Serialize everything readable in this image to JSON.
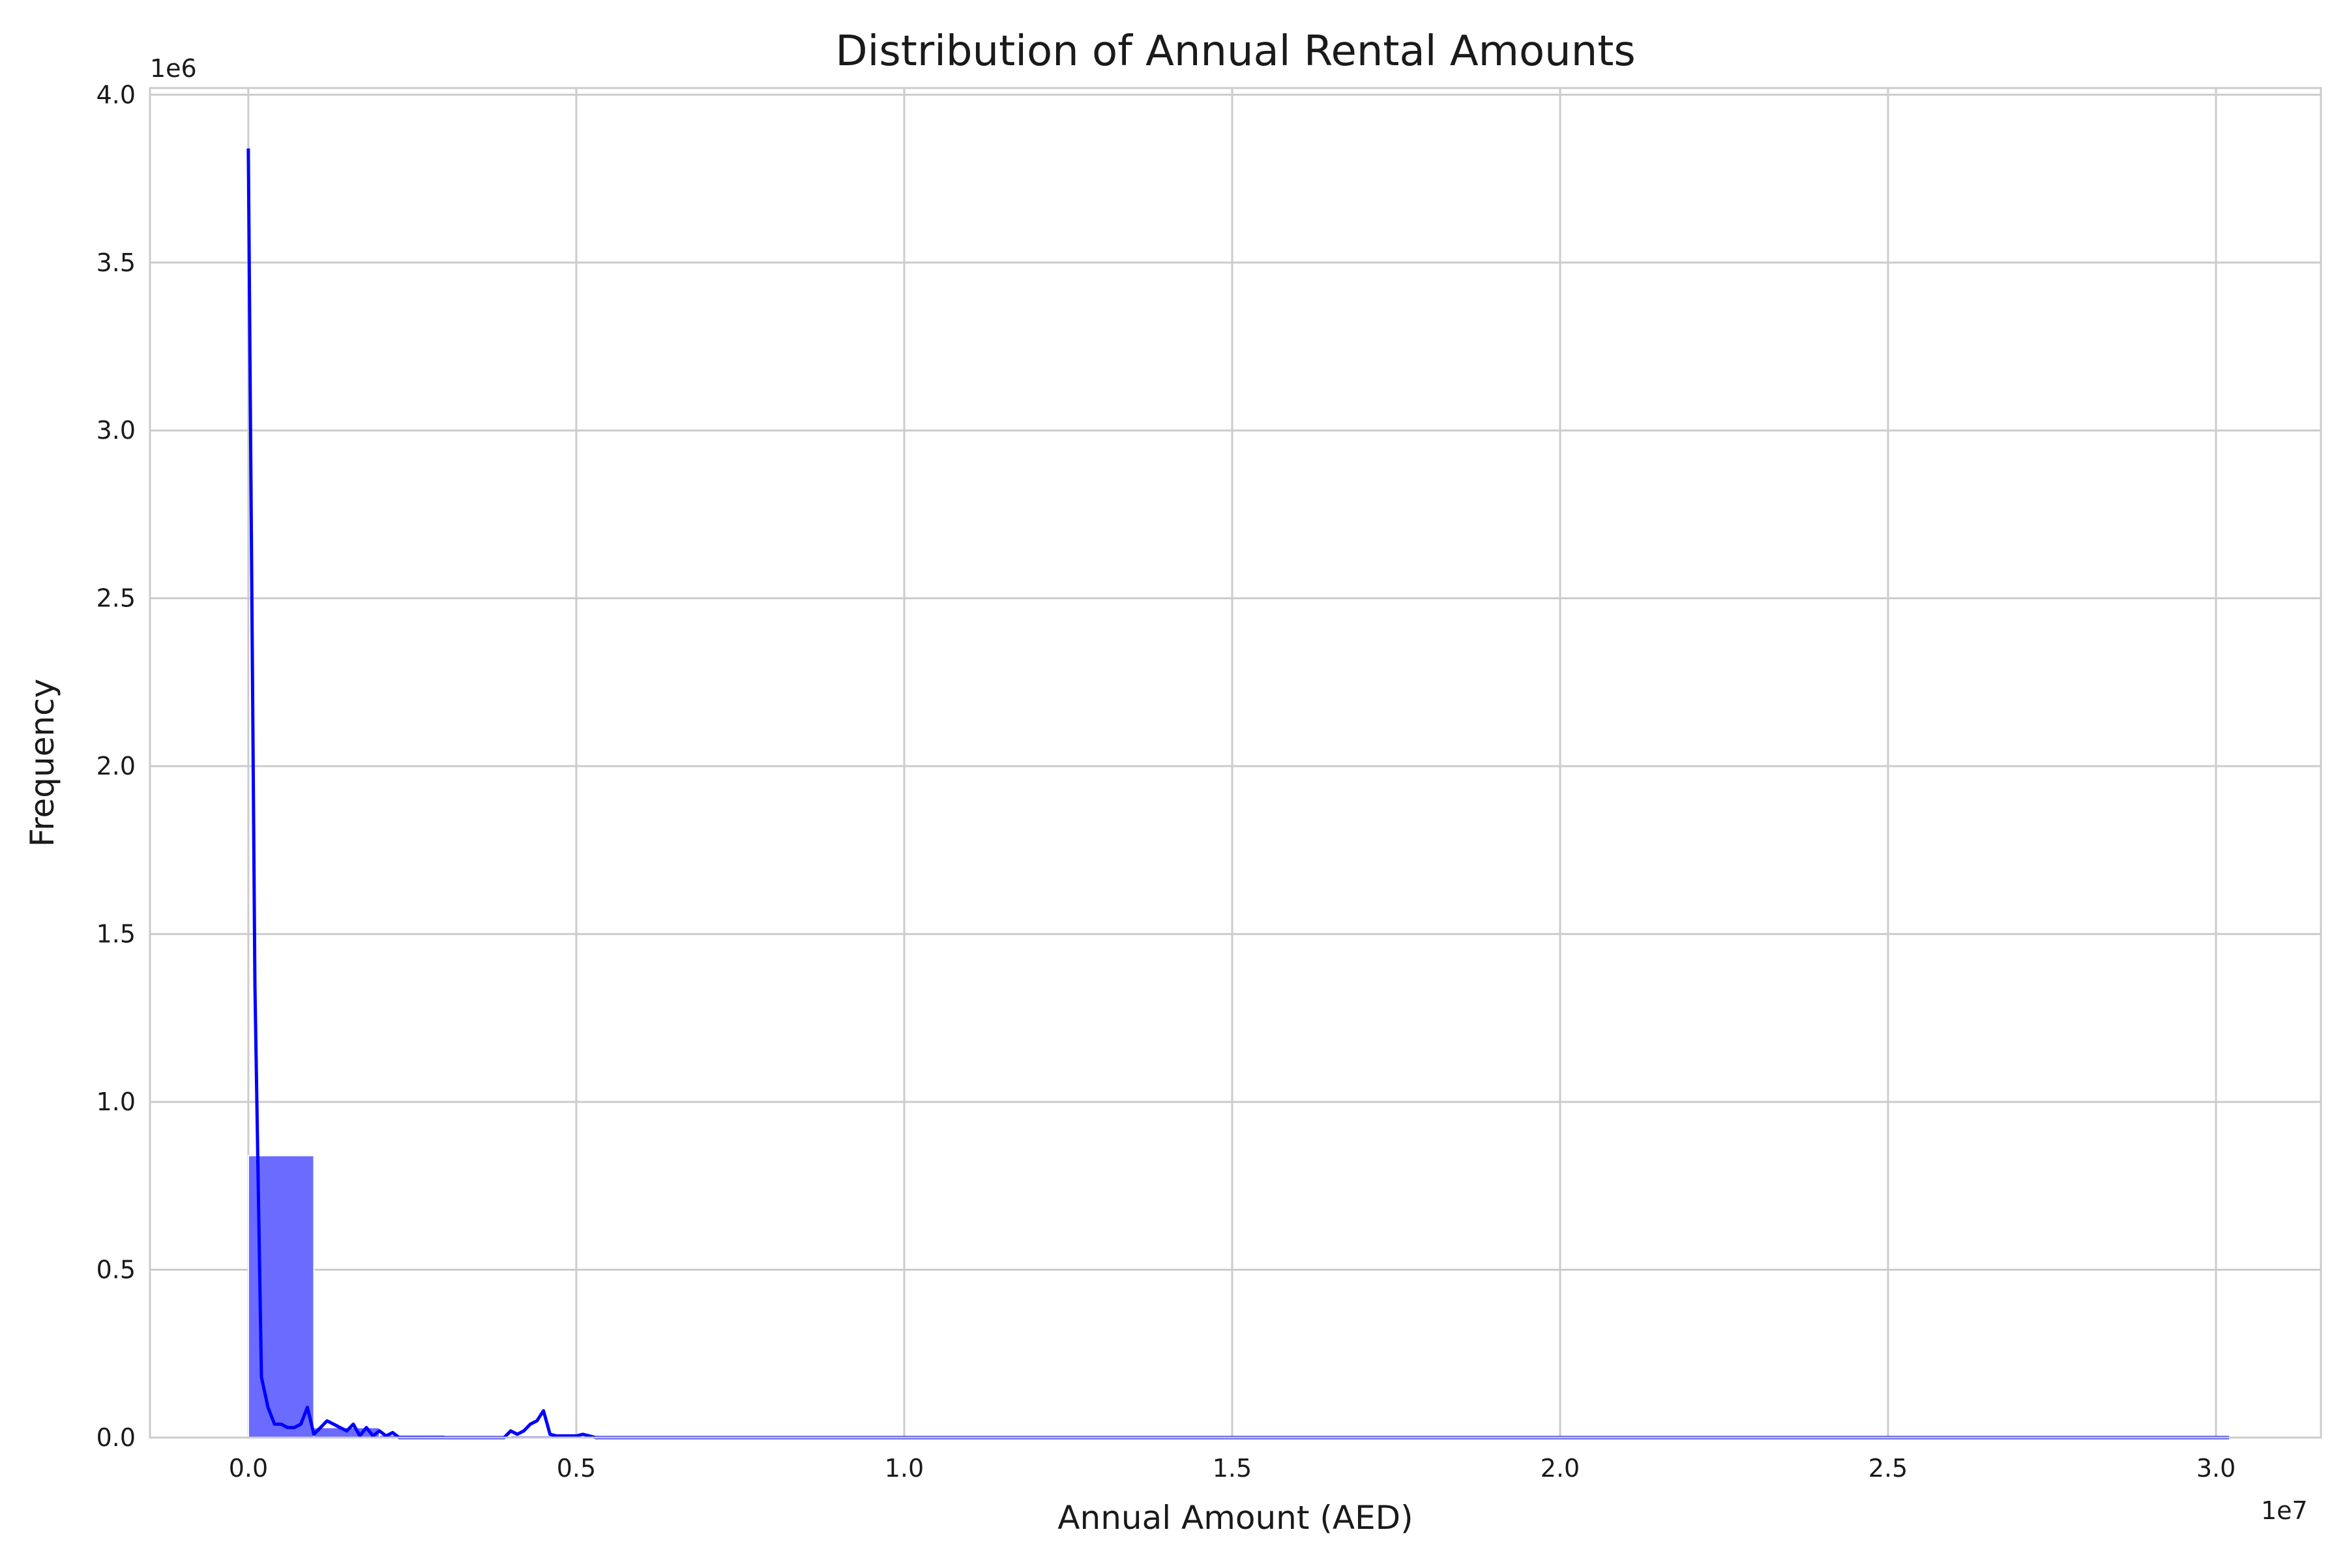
{
  "chart_data": {
    "type": "bar",
    "title": "Distribution of Annual Rental Amounts",
    "xlabel": "Annual Amount (AED)",
    "ylabel": "Frequency",
    "x_offset_text": "1e7",
    "y_offset_text": "1e6",
    "xlim": [
      -0.15,
      3.16
    ],
    "ylim": [
      0,
      4.02
    ],
    "x_ticks": [
      0.0,
      0.5,
      1.0,
      1.5,
      2.0,
      2.5,
      3.0
    ],
    "x_tick_labels": [
      "0.0",
      "0.5",
      "1.0",
      "1.5",
      "2.0",
      "2.5",
      "3.0"
    ],
    "y_ticks": [
      0.0,
      0.5,
      1.0,
      1.5,
      2.0,
      2.5,
      3.0,
      3.5,
      4.0
    ],
    "y_tick_labels": [
      "0.0",
      "0.5",
      "1.0",
      "1.5",
      "2.0",
      "2.5",
      "3.0",
      "3.5",
      "4.0"
    ],
    "grid": true,
    "bar_color": "#6b6bff",
    "line_color": "#0000ff",
    "bins": [
      {
        "x0": 0.0,
        "x1": 0.1,
        "value": 0.84
      },
      {
        "x0": 0.1,
        "x1": 0.2,
        "value": 0.03
      },
      {
        "x0": 0.2,
        "x1": 0.3,
        "value": 0.008
      },
      {
        "x0": 0.3,
        "x1": 0.4,
        "value": 0.004
      },
      {
        "x0": 0.4,
        "x1": 0.5,
        "value": 0.006
      },
      {
        "x0": 0.5,
        "x1": 3.02,
        "value": 0.003
      }
    ],
    "series": [
      {
        "type": "line",
        "x": [
          0.0,
          0.01,
          0.02,
          0.03,
          0.04,
          0.05,
          0.06,
          0.07,
          0.08,
          0.09,
          0.1,
          0.11,
          0.12,
          0.13,
          0.14,
          0.15,
          0.16,
          0.17,
          0.18,
          0.19,
          0.2,
          0.21,
          0.22,
          0.23,
          0.24,
          0.25,
          0.26,
          0.27,
          0.28,
          0.29,
          0.3,
          0.33,
          0.36,
          0.39,
          0.4,
          0.41,
          0.42,
          0.43,
          0.44,
          0.45,
          0.46,
          0.47,
          0.48,
          0.49,
          0.5,
          0.51,
          0.52,
          0.53,
          0.6,
          0.8,
          1.0,
          1.5,
          2.0,
          2.5,
          3.02
        ],
        "y": [
          3.84,
          1.35,
          0.18,
          0.09,
          0.04,
          0.04,
          0.03,
          0.03,
          0.04,
          0.09,
          0.01,
          0.03,
          0.05,
          0.04,
          0.03,
          0.02,
          0.04,
          0.005,
          0.03,
          0.005,
          0.02,
          0.005,
          0.015,
          0.0,
          0.0,
          0.0,
          0.0,
          0.0,
          0.0,
          0.0,
          0.0,
          0.0,
          0.0,
          0.0,
          0.02,
          0.01,
          0.02,
          0.04,
          0.05,
          0.08,
          0.01,
          0.005,
          0.005,
          0.005,
          0.005,
          0.01,
          0.005,
          0.0,
          0.0,
          0.0,
          0.0,
          0.0,
          0.0,
          0.0,
          0.0
        ]
      }
    ]
  }
}
